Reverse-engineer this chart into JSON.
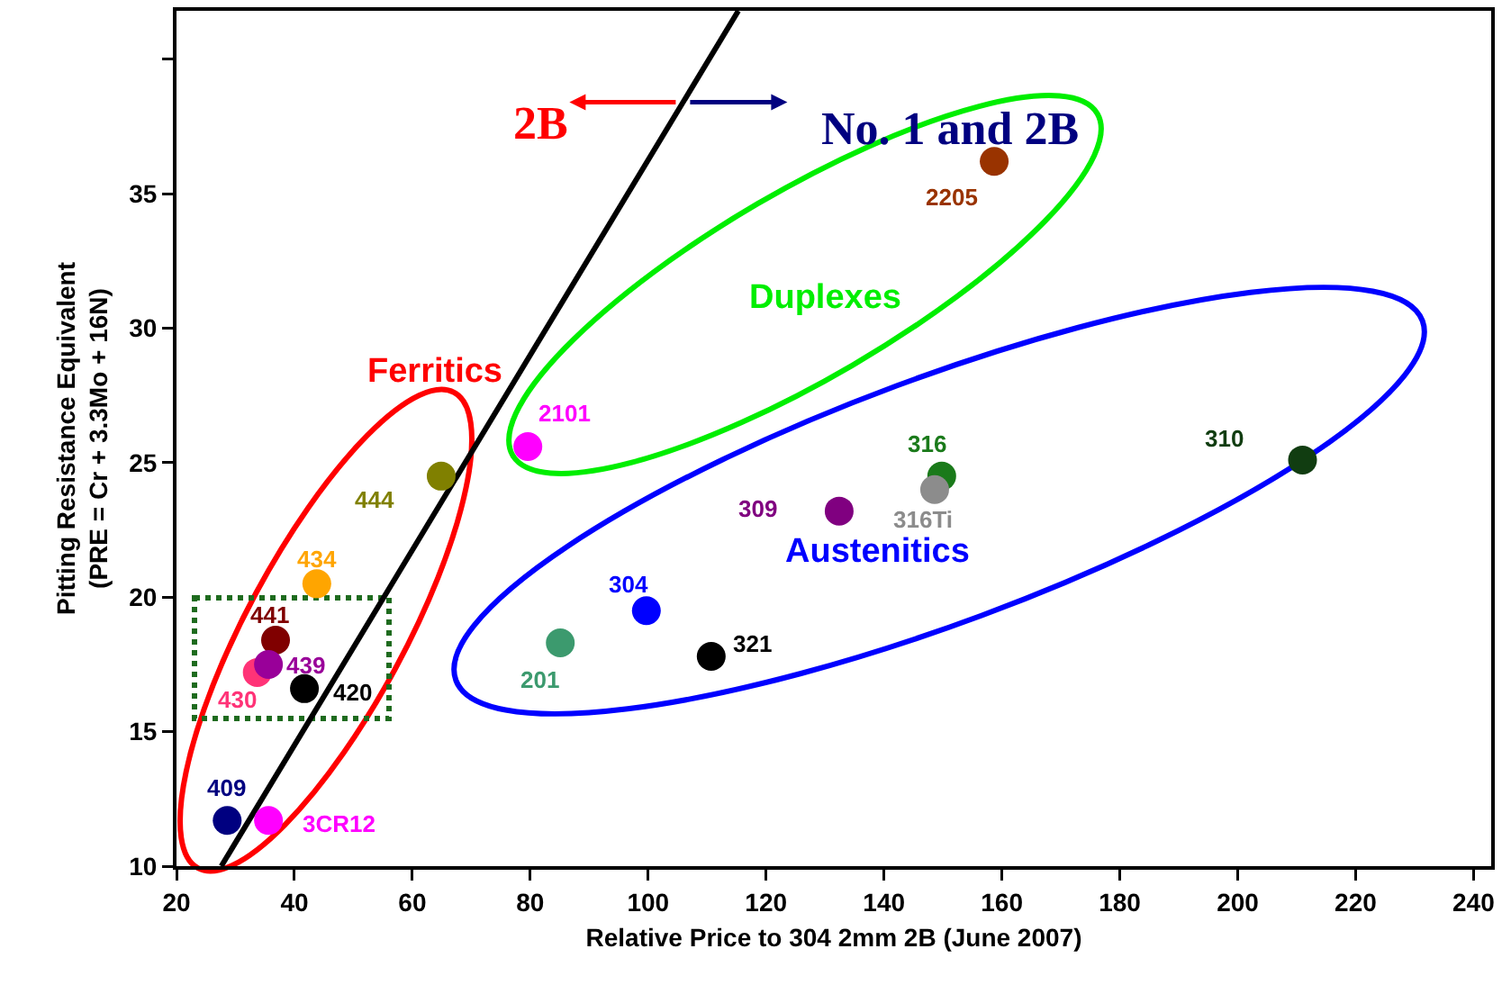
{
  "chart_data": {
    "type": "scatter",
    "xlabel": "Relative Price to 304 2mm 2B (June 2007)",
    "ylabel": "Pitting Resistance Equivalent\n(PRE = Cr + 3.3Mo + 16N)",
    "xlim": [
      20,
      243
    ],
    "ylim": [
      10,
      41.8
    ],
    "xticks": [
      20,
      40,
      60,
      80,
      100,
      120,
      140,
      160,
      180,
      200,
      220,
      240
    ],
    "yticks": [
      10,
      15,
      20,
      25,
      30,
      35,
      {
        "value": 40,
        "label": null
      }
    ],
    "grid": false,
    "legend": false,
    "marker": "circle",
    "annotations": [
      {
        "text": "2B",
        "x": 105.9,
        "y": 38.4
      },
      {
        "text": "No. 1 and 2B",
        "x": 105.9,
        "y": 38.4
      },
      "Ferritics",
      "Duplexes",
      "Austenitics"
    ],
    "series": [
      {
        "type": "line",
        "color": "#000000",
        "marker": "none",
        "x": [
          27.6,
          115.3
        ],
        "values": [
          10,
          41.8
        ]
      },
      {
        "name": "2205",
        "color": "#993300",
        "x": [
          158.7
        ],
        "values": [
          36.2
        ]
      },
      {
        "name": "2101",
        "color": "#ff00ff",
        "x": [
          79.6
        ],
        "values": [
          25.6
        ]
      },
      {
        "name": "316",
        "color": "#1a7a1a",
        "x": [
          149.8
        ],
        "values": [
          24.5
        ]
      },
      {
        "name": "316Ti",
        "color": "#8c8c8c",
        "x": [
          148.6
        ],
        "values": [
          24.0
        ]
      },
      {
        "name": "310",
        "color": "#113d11",
        "x": [
          211
        ],
        "values": [
          25.1
        ]
      },
      {
        "name": "309",
        "color": "#800080",
        "x": [
          132.4
        ],
        "values": [
          23.2
        ]
      },
      {
        "name": "444",
        "color": "#808000",
        "x": [
          64.9
        ],
        "values": [
          24.5
        ]
      },
      {
        "name": "434",
        "color": "#ffa500",
        "x": [
          43.8
        ],
        "values": [
          20.5
        ]
      },
      {
        "name": "441",
        "color": "#800000",
        "x": [
          36.8
        ],
        "values": [
          18.4
        ]
      },
      {
        "name": "430",
        "color": "#ff3377",
        "x": [
          33.7
        ],
        "values": [
          17.2
        ]
      },
      {
        "name": "439",
        "color": "#990099",
        "x": [
          35.6
        ],
        "values": [
          17.5
        ]
      },
      {
        "name": "420",
        "color": "#000000",
        "x": [
          41.7
        ],
        "values": [
          16.6
        ]
      },
      {
        "name": "304",
        "color": "#0000ff",
        "x": [
          99.7
        ],
        "values": [
          19.5
        ]
      },
      {
        "name": "201",
        "color": "#3c9a6e",
        "x": [
          85.1
        ],
        "values": [
          18.3
        ]
      },
      {
        "name": "321",
        "color": "#000000",
        "x": [
          110.7
        ],
        "values": [
          17.8
        ]
      },
      {
        "name": "409",
        "color": "#000080",
        "x": [
          28.6
        ],
        "values": [
          11.7
        ]
      },
      {
        "name": "3CR12",
        "color": "#ff00ff",
        "x": [
          35.6
        ],
        "values": [
          11.7
        ]
      }
    ]
  }
}
